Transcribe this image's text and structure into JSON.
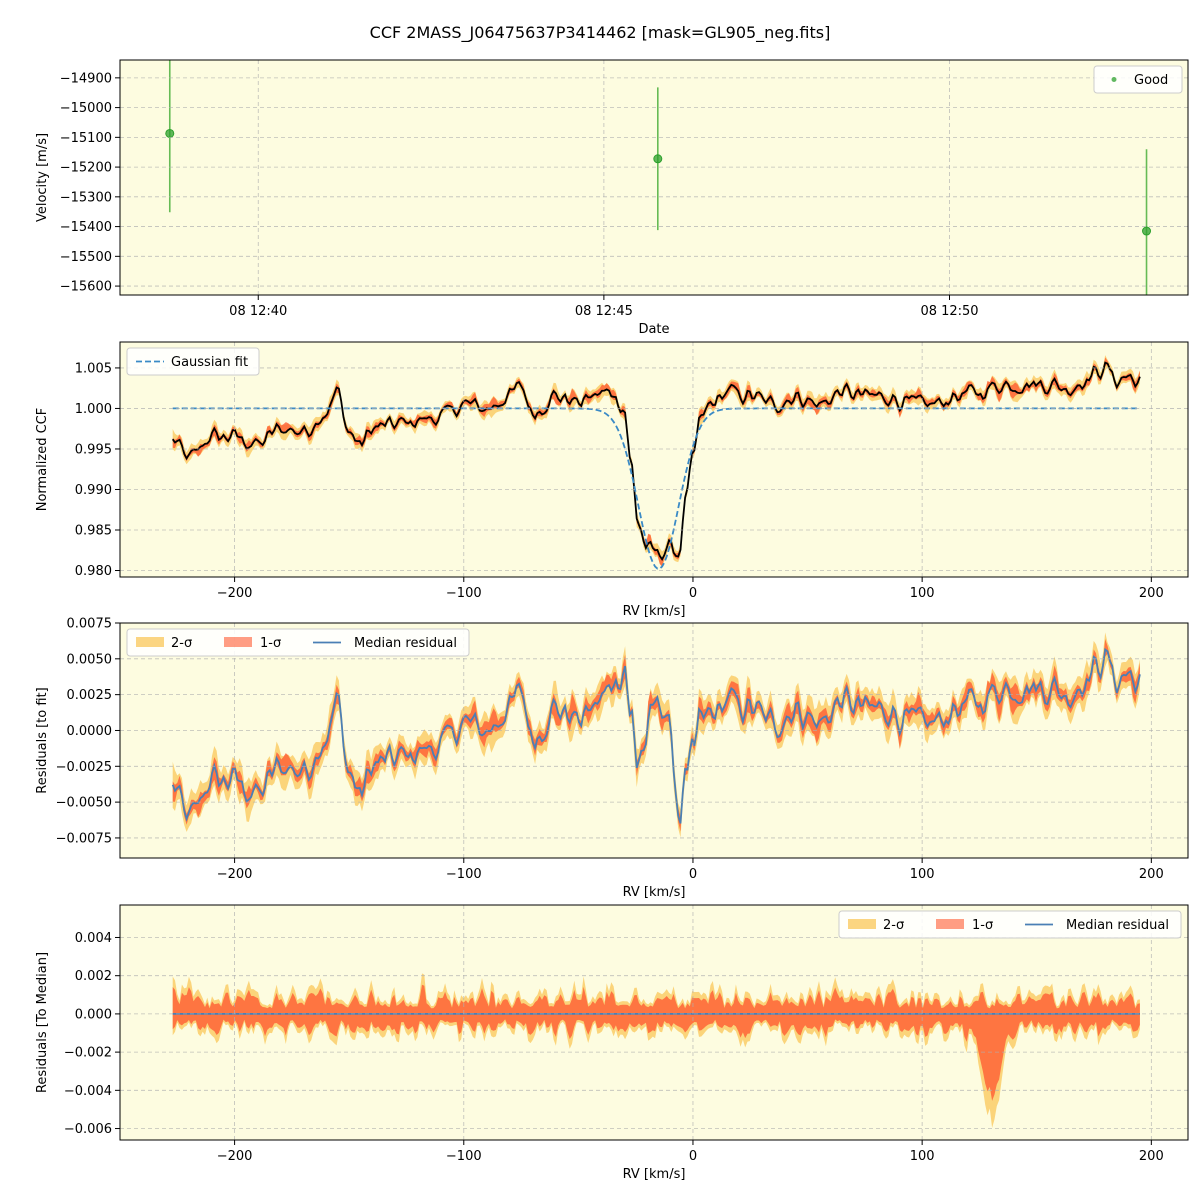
{
  "figure": {
    "title": "CCF 2MASS_J06475637P3414462 [mask=GL905_neg.fits]",
    "background": "#fdfce0",
    "colors": {
      "good": "#2ca02c",
      "errorbar": "#66bb55",
      "sigma2": "#f9c758",
      "sigma1": "#ff5c33",
      "median": "#4a7fb5",
      "ccf": "#000000",
      "gauss": "#3a8ac6",
      "grid": "#b0b0b0"
    }
  },
  "chart_data": [
    {
      "id": "velocity",
      "type": "scatter",
      "xlabel": "Date",
      "ylabel": "Velocity [m/s]",
      "x_ticks": [
        "08 12:40",
        "08 12:45",
        "08 12:50"
      ],
      "x_tick_minutes": [
        40,
        45,
        50
      ],
      "xlim_minutes": [
        38.0,
        53.45
      ],
      "ylim": [
        -15630,
        -14840
      ],
      "y_ticks": [
        -15600,
        -15500,
        -15400,
        -15300,
        -15200,
        -15100,
        -15000,
        -14900
      ],
      "legend": [
        "Good"
      ],
      "legend_position": "top-right",
      "points": [
        {
          "time": "08 12:38:43",
          "minute": 38.72,
          "y": -15087,
          "err": 265
        },
        {
          "time": "08 12:45:47",
          "minute": 45.78,
          "y": -15172,
          "err": 240
        },
        {
          "time": "08 12:52:51",
          "minute": 52.85,
          "y": -15415,
          "err": 275
        }
      ]
    },
    {
      "id": "ccf",
      "type": "line",
      "xlabel": "RV [km/s]",
      "ylabel": "Normalized CCF",
      "xlim": [
        -250,
        216
      ],
      "ylim": [
        0.9792,
        1.0082
      ],
      "x_ticks": [
        -200,
        -100,
        0,
        100,
        200
      ],
      "y_ticks": [
        0.98,
        0.985,
        0.99,
        0.995,
        1.0,
        1.005
      ],
      "y_tick_labels": [
        "0.980",
        "0.985",
        "0.990",
        "0.995",
        "1.000",
        "1.005"
      ],
      "legend": [
        "Gaussian fit"
      ],
      "legend_position": "top-left",
      "rv_range": [
        -227,
        195
      ],
      "gaussian": {
        "amplitude": -0.0198,
        "center": -15,
        "sigma": 8.8,
        "offset": 1.0
      },
      "median_knots": [
        [
          -227,
          0.996
        ],
        [
          -220,
          0.9938
        ],
        [
          -210,
          0.9965
        ],
        [
          -200,
          0.9965
        ],
        [
          -190,
          0.9955
        ],
        [
          -180,
          0.9975
        ],
        [
          -170,
          0.9972
        ],
        [
          -160,
          0.9995
        ],
        [
          -155,
          1.002
        ],
        [
          -150,
          0.997
        ],
        [
          -145,
          0.9955
        ],
        [
          -140,
          0.9975
        ],
        [
          -130,
          0.998
        ],
        [
          -120,
          0.9985
        ],
        [
          -110,
          0.999
        ],
        [
          -100,
          1.0005
        ],
        [
          -90,
          1.0
        ],
        [
          -80,
          1.0015
        ],
        [
          -75,
          1.0028
        ],
        [
          -70,
          0.9995
        ],
        [
          -60,
          1.0015
        ],
        [
          -50,
          1.0008
        ],
        [
          -40,
          1.0018
        ],
        [
          -35,
          1.002
        ],
        [
          -30,
          1.0
        ],
        [
          -27,
          0.993
        ],
        [
          -24,
          0.986
        ],
        [
          -20,
          0.9825
        ],
        [
          -15,
          0.9822
        ],
        [
          -10,
          0.9828
        ],
        [
          -6,
          0.9822
        ],
        [
          -3,
          0.989
        ],
        [
          0,
          0.9935
        ],
        [
          3,
          0.9985
        ],
        [
          8,
          1.0005
        ],
        [
          15,
          1.002
        ],
        [
          25,
          1.0015
        ],
        [
          35,
          1.0005
        ],
        [
          45,
          1.0015
        ],
        [
          55,
          1.0005
        ],
        [
          65,
          1.002
        ],
        [
          75,
          1.0015
        ],
        [
          85,
          1.0015
        ],
        [
          95,
          1.0005
        ],
        [
          105,
          1.0005
        ],
        [
          115,
          1.0015
        ],
        [
          125,
          1.002
        ],
        [
          135,
          1.003
        ],
        [
          145,
          1.003
        ],
        [
          155,
          1.003
        ],
        [
          165,
          1.0025
        ],
        [
          170,
          1.0035
        ],
        [
          180,
          1.005
        ],
        [
          185,
          1.0035
        ],
        [
          190,
          1.004
        ],
        [
          195,
          1.003
        ]
      ]
    },
    {
      "id": "residuals_fit",
      "type": "line",
      "xlabel": "RV [km/s]",
      "ylabel": "Residuals [to fit]",
      "xlim": [
        -250,
        216
      ],
      "ylim": [
        -0.0089,
        0.0075
      ],
      "x_ticks": [
        -200,
        -100,
        0,
        100,
        200
      ],
      "y_ticks": [
        -0.0075,
        -0.005,
        -0.0025,
        0.0,
        0.0025,
        0.005,
        0.0075
      ],
      "y_tick_labels": [
        "−0.0075",
        "−0.0050",
        "−0.0025",
        "0.0000",
        "0.0025",
        "0.0050",
        "0.0075"
      ],
      "legend": [
        "2-σ",
        "1-σ",
        "Median residual"
      ],
      "legend_position": "top-left"
    },
    {
      "id": "residuals_median",
      "type": "line",
      "xlabel": "RV [km/s]",
      "ylabel": "Residuals [To Median]",
      "xlim": [
        -250,
        216
      ],
      "ylim": [
        -0.0066,
        0.0057
      ],
      "x_ticks": [
        -200,
        -100,
        0,
        100,
        200
      ],
      "y_ticks": [
        -0.006,
        -0.004,
        -0.002,
        0.0,
        0.002,
        0.004
      ],
      "y_tick_labels": [
        "−0.006",
        "−0.004",
        "−0.002",
        "0.000",
        "0.002",
        "0.004"
      ],
      "legend": [
        "2-σ",
        "1-σ",
        "Median residual"
      ],
      "legend_position": "top-right"
    }
  ]
}
